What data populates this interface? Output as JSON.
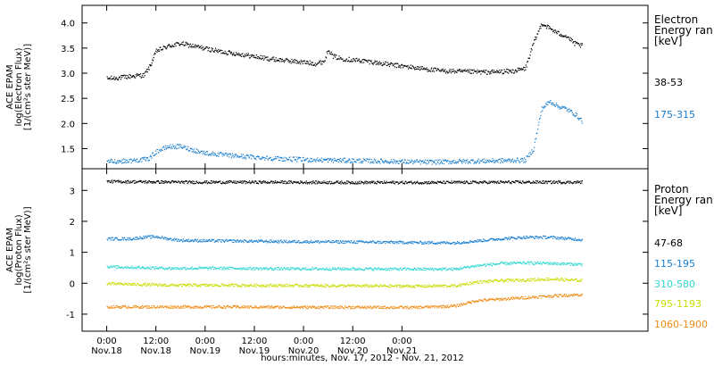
{
  "chart_data": [
    {
      "type": "scatter",
      "panel": "electron",
      "ylabel_lines": [
        "ACE EPAM",
        "log(Electron Flux)",
        "[1/(cm²s ster MeV)]"
      ],
      "ylim": [
        1.1,
        4.35
      ],
      "yticks": [
        "1.5",
        "2.0",
        "2.5",
        "3.0",
        "3.5",
        "4.0"
      ],
      "legend": {
        "title_lines": [
          "Electron",
          "Energy ran",
          "[keV]"
        ],
        "placement": "right"
      },
      "series": [
        {
          "name": "38-53",
          "color": "#000000",
          "points": [
            [
              0,
              2.9
            ],
            [
              3,
              2.92
            ],
            [
              6,
              2.95
            ],
            [
              9,
              2.97
            ],
            [
              10.5,
              3.15
            ],
            [
              12,
              3.45
            ],
            [
              15,
              3.55
            ],
            [
              18,
              3.6
            ],
            [
              21,
              3.55
            ],
            [
              27,
              3.45
            ],
            [
              33,
              3.38
            ],
            [
              39,
              3.3
            ],
            [
              45,
              3.25
            ],
            [
              51,
              3.2
            ],
            [
              53,
              3.25
            ],
            [
              54,
              3.5
            ],
            [
              55,
              3.35
            ],
            [
              57,
              3.3
            ],
            [
              63,
              3.25
            ],
            [
              69,
              3.18
            ],
            [
              75,
              3.12
            ],
            [
              81,
              3.06
            ],
            [
              87,
              3.04
            ],
            [
              93,
              3.03
            ],
            [
              99,
              3.05
            ],
            [
              102,
              3.1
            ],
            [
              104,
              3.6
            ],
            [
              106,
              4.0
            ],
            [
              108,
              3.9
            ],
            [
              110,
              3.8
            ],
            [
              112,
              3.75
            ],
            [
              114,
              3.6
            ],
            [
              116,
              3.55
            ]
          ]
        },
        {
          "name": "175-315",
          "color": "#1a7fd0",
          "points": [
            [
              0,
              1.25
            ],
            [
              6,
              1.27
            ],
            [
              10,
              1.3
            ],
            [
              12,
              1.45
            ],
            [
              15,
              1.55
            ],
            [
              18,
              1.55
            ],
            [
              21,
              1.48
            ],
            [
              24,
              1.42
            ],
            [
              30,
              1.37
            ],
            [
              36,
              1.34
            ],
            [
              42,
              1.31
            ],
            [
              48,
              1.29
            ],
            [
              54,
              1.28
            ],
            [
              60,
              1.27
            ],
            [
              66,
              1.26
            ],
            [
              72,
              1.25
            ],
            [
              78,
              1.24
            ],
            [
              84,
              1.25
            ],
            [
              90,
              1.26
            ],
            [
              96,
              1.27
            ],
            [
              102,
              1.28
            ],
            [
              104,
              1.5
            ],
            [
              106,
              2.3
            ],
            [
              108,
              2.45
            ],
            [
              110,
              2.35
            ],
            [
              112,
              2.3
            ],
            [
              114,
              2.2
            ],
            [
              116,
              2.05
            ]
          ]
        }
      ]
    },
    {
      "type": "scatter",
      "panel": "proton",
      "ylabel_lines": [
        "ACE EPAM",
        "log(Proton Flux)",
        "[1/(cm²s ster MeV)]"
      ],
      "ylim": [
        -1.55,
        3.7
      ],
      "yticks": [
        "-1",
        "0",
        "1",
        "2",
        "3"
      ],
      "legend": {
        "title_lines": [
          "Proton",
          "Energy ran",
          "[keV]"
        ],
        "placement": "right"
      },
      "series": [
        {
          "name": "47-68",
          "color": "#000000",
          "points": [
            [
              0,
              3.3
            ],
            [
              20,
              3.28
            ],
            [
              40,
              3.28
            ],
            [
              60,
              3.27
            ],
            [
              80,
              3.27
            ],
            [
              100,
              3.28
            ],
            [
              116,
              3.28
            ]
          ]
        },
        {
          "name": "115-195",
          "color": "#1a7fd0",
          "points": [
            [
              0,
              1.45
            ],
            [
              6,
              1.45
            ],
            [
              9,
              1.5
            ],
            [
              12,
              1.52
            ],
            [
              15,
              1.45
            ],
            [
              18,
              1.4
            ],
            [
              30,
              1.38
            ],
            [
              45,
              1.36
            ],
            [
              60,
              1.35
            ],
            [
              75,
              1.33
            ],
            [
              85,
              1.32
            ],
            [
              90,
              1.38
            ],
            [
              96,
              1.45
            ],
            [
              102,
              1.5
            ],
            [
              108,
              1.5
            ],
            [
              116,
              1.42
            ]
          ]
        },
        {
          "name": "310-580",
          "color": "#2fd8d0",
          "points": [
            [
              0,
              0.55
            ],
            [
              15,
              0.5
            ],
            [
              30,
              0.5
            ],
            [
              45,
              0.48
            ],
            [
              60,
              0.48
            ],
            [
              75,
              0.47
            ],
            [
              85,
              0.47
            ],
            [
              90,
              0.58
            ],
            [
              96,
              0.65
            ],
            [
              102,
              0.67
            ],
            [
              108,
              0.66
            ],
            [
              116,
              0.62
            ]
          ]
        },
        {
          "name": "795-1193",
          "color": "#c8dc00",
          "points": [
            [
              0,
              0.0
            ],
            [
              15,
              -0.05
            ],
            [
              30,
              -0.05
            ],
            [
              45,
              -0.06
            ],
            [
              60,
              -0.07
            ],
            [
              75,
              -0.08
            ],
            [
              85,
              -0.07
            ],
            [
              90,
              0.05
            ],
            [
              96,
              0.1
            ],
            [
              102,
              0.12
            ],
            [
              108,
              0.15
            ],
            [
              116,
              0.1
            ]
          ]
        },
        {
          "name": "1060-1900",
          "color": "#ee8a12",
          "points": [
            [
              0,
              -0.75
            ],
            [
              15,
              -0.75
            ],
            [
              30,
              -0.75
            ],
            [
              45,
              -0.76
            ],
            [
              60,
              -0.76
            ],
            [
              75,
              -0.77
            ],
            [
              85,
              -0.72
            ],
            [
              90,
              -0.55
            ],
            [
              96,
              -0.5
            ],
            [
              102,
              -0.45
            ],
            [
              108,
              -0.4
            ],
            [
              116,
              -0.35
            ]
          ]
        }
      ]
    }
  ],
  "x_axis": {
    "domain_hours": [
      -6,
      132
    ],
    "ticks": [
      {
        "hour": 0,
        "time": "0:00",
        "date": "Nov.18"
      },
      {
        "hour": 12,
        "time": "12:00",
        "date": "Nov.18"
      },
      {
        "hour": 24,
        "time": "0:00",
        "date": "Nov.19"
      },
      {
        "hour": 36,
        "time": "12:00",
        "date": "Nov.19"
      },
      {
        "hour": 48,
        "time": "0:00",
        "date": "Nov.20"
      },
      {
        "hour": 60,
        "time": "12:00",
        "date": "Nov.20"
      },
      {
        "hour": 72,
        "time": "0:00",
        "date": "Nov.21"
      }
    ],
    "xlabel": "hours:minutes, Nov. 17, 2012 - Nov. 21, 2012"
  }
}
